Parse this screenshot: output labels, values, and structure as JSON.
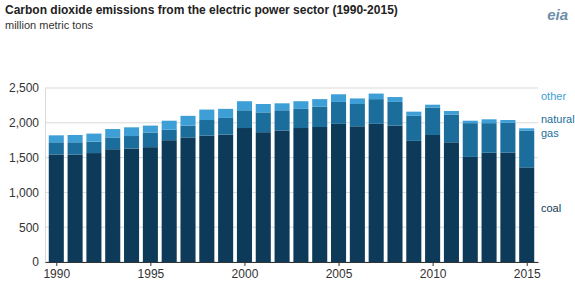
{
  "chart_data": {
    "type": "bar",
    "stacked": true,
    "grid": true,
    "title": "Carbon dioxide emissions from the electric power sector (1990-2015)",
    "subtitle": "million metric tons",
    "logo": "eia",
    "x": [
      1990,
      1991,
      1992,
      1993,
      1994,
      1995,
      1996,
      1997,
      1998,
      1999,
      2000,
      2001,
      2002,
      2003,
      2004,
      2005,
      2006,
      2007,
      2008,
      2009,
      2010,
      2011,
      2012,
      2013,
      2014,
      2015
    ],
    "xlim": [
      1989.4,
      2015.6
    ],
    "xticks": [
      1990,
      1995,
      2000,
      2005,
      2010,
      2015
    ],
    "ylim": [
      0,
      2500
    ],
    "yticks": [
      0,
      500,
      {
        "value": 1000,
        "label": "1,000"
      },
      {
        "value": 1500,
        "label": "1,500"
      },
      {
        "value": 2000,
        "label": "2,000"
      },
      {
        "value": 2500,
        "label": "2,500"
      }
    ],
    "series": [
      {
        "name": "coal",
        "color": "#0d3a58",
        "values": [
          1545,
          1545,
          1565,
          1620,
          1630,
          1650,
          1750,
          1790,
          1815,
          1830,
          1925,
          1865,
          1890,
          1925,
          1940,
          1985,
          1950,
          1985,
          1960,
          1740,
          1825,
          1720,
          1510,
          1570,
          1570,
          1360
        ]
      },
      {
        "name": "natural gas",
        "color": "#1b6e9c",
        "values": [
          175,
          175,
          165,
          170,
          180,
          210,
          150,
          170,
          225,
          240,
          255,
          285,
          290,
          275,
          290,
          315,
          320,
          355,
          340,
          360,
          395,
          400,
          485,
          425,
          430,
          525
        ]
      },
      {
        "name": "other",
        "color": "#3d9fd5",
        "values": [
          100,
          105,
          115,
          120,
          125,
          100,
          130,
          140,
          150,
          130,
          130,
          120,
          100,
          110,
          110,
          110,
          80,
          80,
          70,
          60,
          40,
          50,
          35,
          55,
          40,
          35
        ]
      }
    ]
  }
}
